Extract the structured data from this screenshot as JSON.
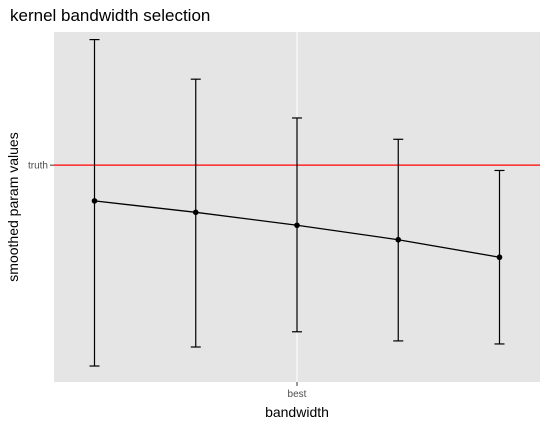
{
  "chart_data": {
    "type": "line",
    "title": "kernel bandwidth selection",
    "xlabel": "bandwidth",
    "ylabel": "smoothed param values",
    "x_ticks": [
      {
        "position": 3,
        "label": "best"
      }
    ],
    "y_ticks": [
      {
        "value": 0,
        "label": "truth"
      }
    ],
    "xlim": [
      0.6,
      5.4
    ],
    "ylim": [
      -2.85,
      1.75
    ],
    "grid": true,
    "legend": "none",
    "reference_line": {
      "value": 0,
      "color": "#ff0000"
    },
    "series": [
      {
        "x": [
          1,
          2,
          3,
          4,
          5
        ],
        "y": [
          -0.47,
          -0.62,
          -0.79,
          -0.98,
          -1.21
        ],
        "lower": [
          -2.64,
          -2.39,
          -2.19,
          -2.31,
          -2.35
        ],
        "upper": [
          1.65,
          1.13,
          0.62,
          0.34,
          -0.07
        ]
      }
    ]
  },
  "colors": {
    "panel_background": "#e5e5e5",
    "grid": "#ffffff",
    "series": "#000000",
    "reference_line": "#ff0000"
  }
}
